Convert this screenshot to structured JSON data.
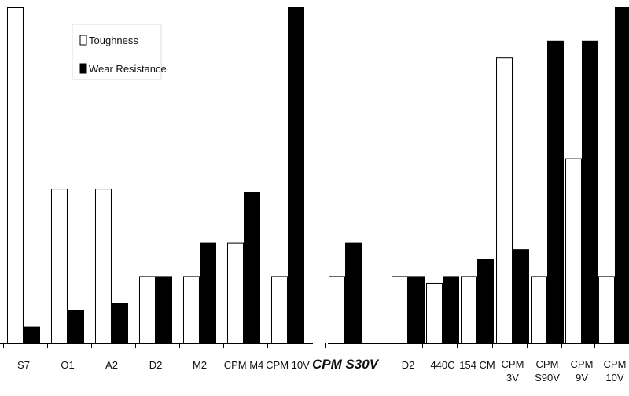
{
  "chart_data": [
    {
      "type": "bar",
      "categories": [
        "S7",
        "O1",
        "A2",
        "D2",
        "M2",
        "CPM M4",
        "CPM 10V"
      ],
      "series": [
        {
          "name": "Toughness",
          "values": [
            10,
            4.6,
            4.6,
            2,
            2,
            3,
            2
          ],
          "color": "#ffffff"
        },
        {
          "name": "Wear Resistance",
          "values": [
            0.5,
            1,
            1.2,
            2,
            3,
            4.5,
            10
          ],
          "color": "#000000"
        }
      ],
      "title": "",
      "xlabel": "",
      "ylabel": "",
      "ylim": [
        0,
        10
      ],
      "legend": {
        "placement": "top-left",
        "labels": [
          "Toughness",
          "Wear Resistance"
        ]
      },
      "grid": false
    },
    {
      "type": "bar",
      "categories": [
        [
          "CPM S30V"
        ],
        [
          "D2"
        ],
        [
          "440C"
        ],
        [
          "154 CM"
        ],
        [
          "CPM",
          "3V"
        ],
        [
          "CPM",
          "S90V"
        ],
        [
          "CPM",
          "9V"
        ],
        [
          "CPM",
          "10V"
        ]
      ],
      "series": [
        {
          "name": "Toughness",
          "values": [
            2,
            2,
            1.8,
            2,
            8.5,
            2,
            5.5,
            2
          ],
          "color": "#ffffff"
        },
        {
          "name": "Wear Resistance",
          "values": [
            3,
            2,
            2,
            2.5,
            2.8,
            9,
            9,
            10
          ],
          "color": "#000000"
        }
      ],
      "emphasized_category": "CPM S30V",
      "title": "",
      "xlabel": "",
      "ylabel": "",
      "ylim": [
        0,
        10
      ],
      "grid": false
    }
  ]
}
